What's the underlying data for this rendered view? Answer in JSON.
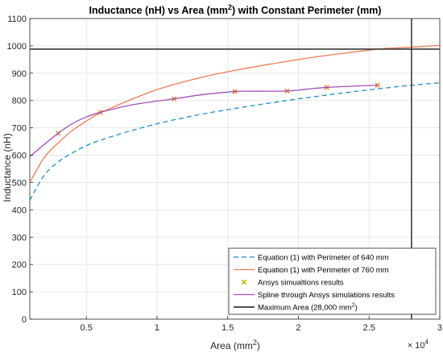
{
  "chart_data": {
    "type": "line",
    "title": "Inductance (nH) vs Area (mm",
    "title_sup": "2",
    "title_suffix": ") with Constant Perimeter (mm)",
    "xlabel": "Area (mm",
    "xlabel_sup": "2",
    "xlabel_suffix": ")",
    "ylabel": "Inductance (nH)",
    "x_multiplier": "× 10",
    "x_multiplier_exp": "4",
    "xlim": [
      1000,
      30000
    ],
    "ylim": [
      0,
      1100
    ],
    "x_ticks": [
      5000,
      10000,
      15000,
      20000,
      25000,
      30000
    ],
    "x_tick_labels": [
      "0.5",
      "1",
      "1.5",
      "2",
      "2.5",
      "3"
    ],
    "y_ticks": [
      0,
      100,
      200,
      300,
      400,
      500,
      600,
      700,
      800,
      900,
      1000,
      1100
    ],
    "y_tick_labels": [
      "0",
      "100",
      "200",
      "300",
      "400",
      "500",
      "600",
      "700",
      "800",
      "900",
      "1000",
      "1100"
    ],
    "grid": true,
    "legend_position": "bottom-right",
    "series": [
      {
        "name": "Equation (1) with Perimeter of 640 mm",
        "style": "dashed",
        "color": "#1f8fc9",
        "x": [
          1000,
          2000,
          3000,
          4000,
          5000,
          6000,
          8000,
          10000,
          12000,
          14000,
          16000,
          18000,
          20000,
          22000,
          24000,
          26000,
          28000,
          30000
        ],
        "y": [
          435,
          525,
          575,
          608,
          635,
          655,
          687,
          715,
          738,
          758,
          775,
          791,
          806,
          820,
          833,
          845,
          856,
          865
        ]
      },
      {
        "name": "Equation (1) with Perimeter of 760 mm",
        "style": "solid",
        "color": "#f07b4f",
        "x": [
          1000,
          2000,
          3000,
          4000,
          5000,
          6000,
          8000,
          10000,
          12000,
          14000,
          16000,
          18000,
          20000,
          22000,
          24000,
          26000,
          28000,
          30000
        ],
        "y": [
          500,
          590,
          645,
          690,
          725,
          755,
          800,
          840,
          870,
          895,
          915,
          933,
          950,
          965,
          978,
          990,
          995,
          1002
        ]
      },
      {
        "name": "Ansys simualtions results",
        "style": "marker",
        "color": "#c8b400",
        "marker_color": "#f08a30",
        "x": [
          3000,
          6000,
          11200,
          15500,
          19200,
          22000,
          25600
        ],
        "y": [
          680,
          757,
          806,
          833,
          835,
          848,
          856
        ]
      },
      {
        "name": "Spline through Ansys simulations results",
        "style": "solid",
        "color": "#a24fb8",
        "x": [
          1000,
          2000,
          3000,
          4000,
          5000,
          6000,
          8000,
          10000,
          11200,
          13000,
          15500,
          17000,
          19200,
          20500,
          22000,
          24000,
          25600
        ],
        "y": [
          595,
          638,
          680,
          715,
          740,
          757,
          782,
          798,
          806,
          820,
          833,
          834,
          835,
          841,
          848,
          853,
          856
        ]
      },
      {
        "name": "Maximum Area (28,000 mm",
        "name_sup": "2",
        "name_suffix": ")",
        "style": "threshold",
        "color": "#3a3a3a",
        "vline_x": 28000,
        "hline_y": 988
      }
    ]
  }
}
